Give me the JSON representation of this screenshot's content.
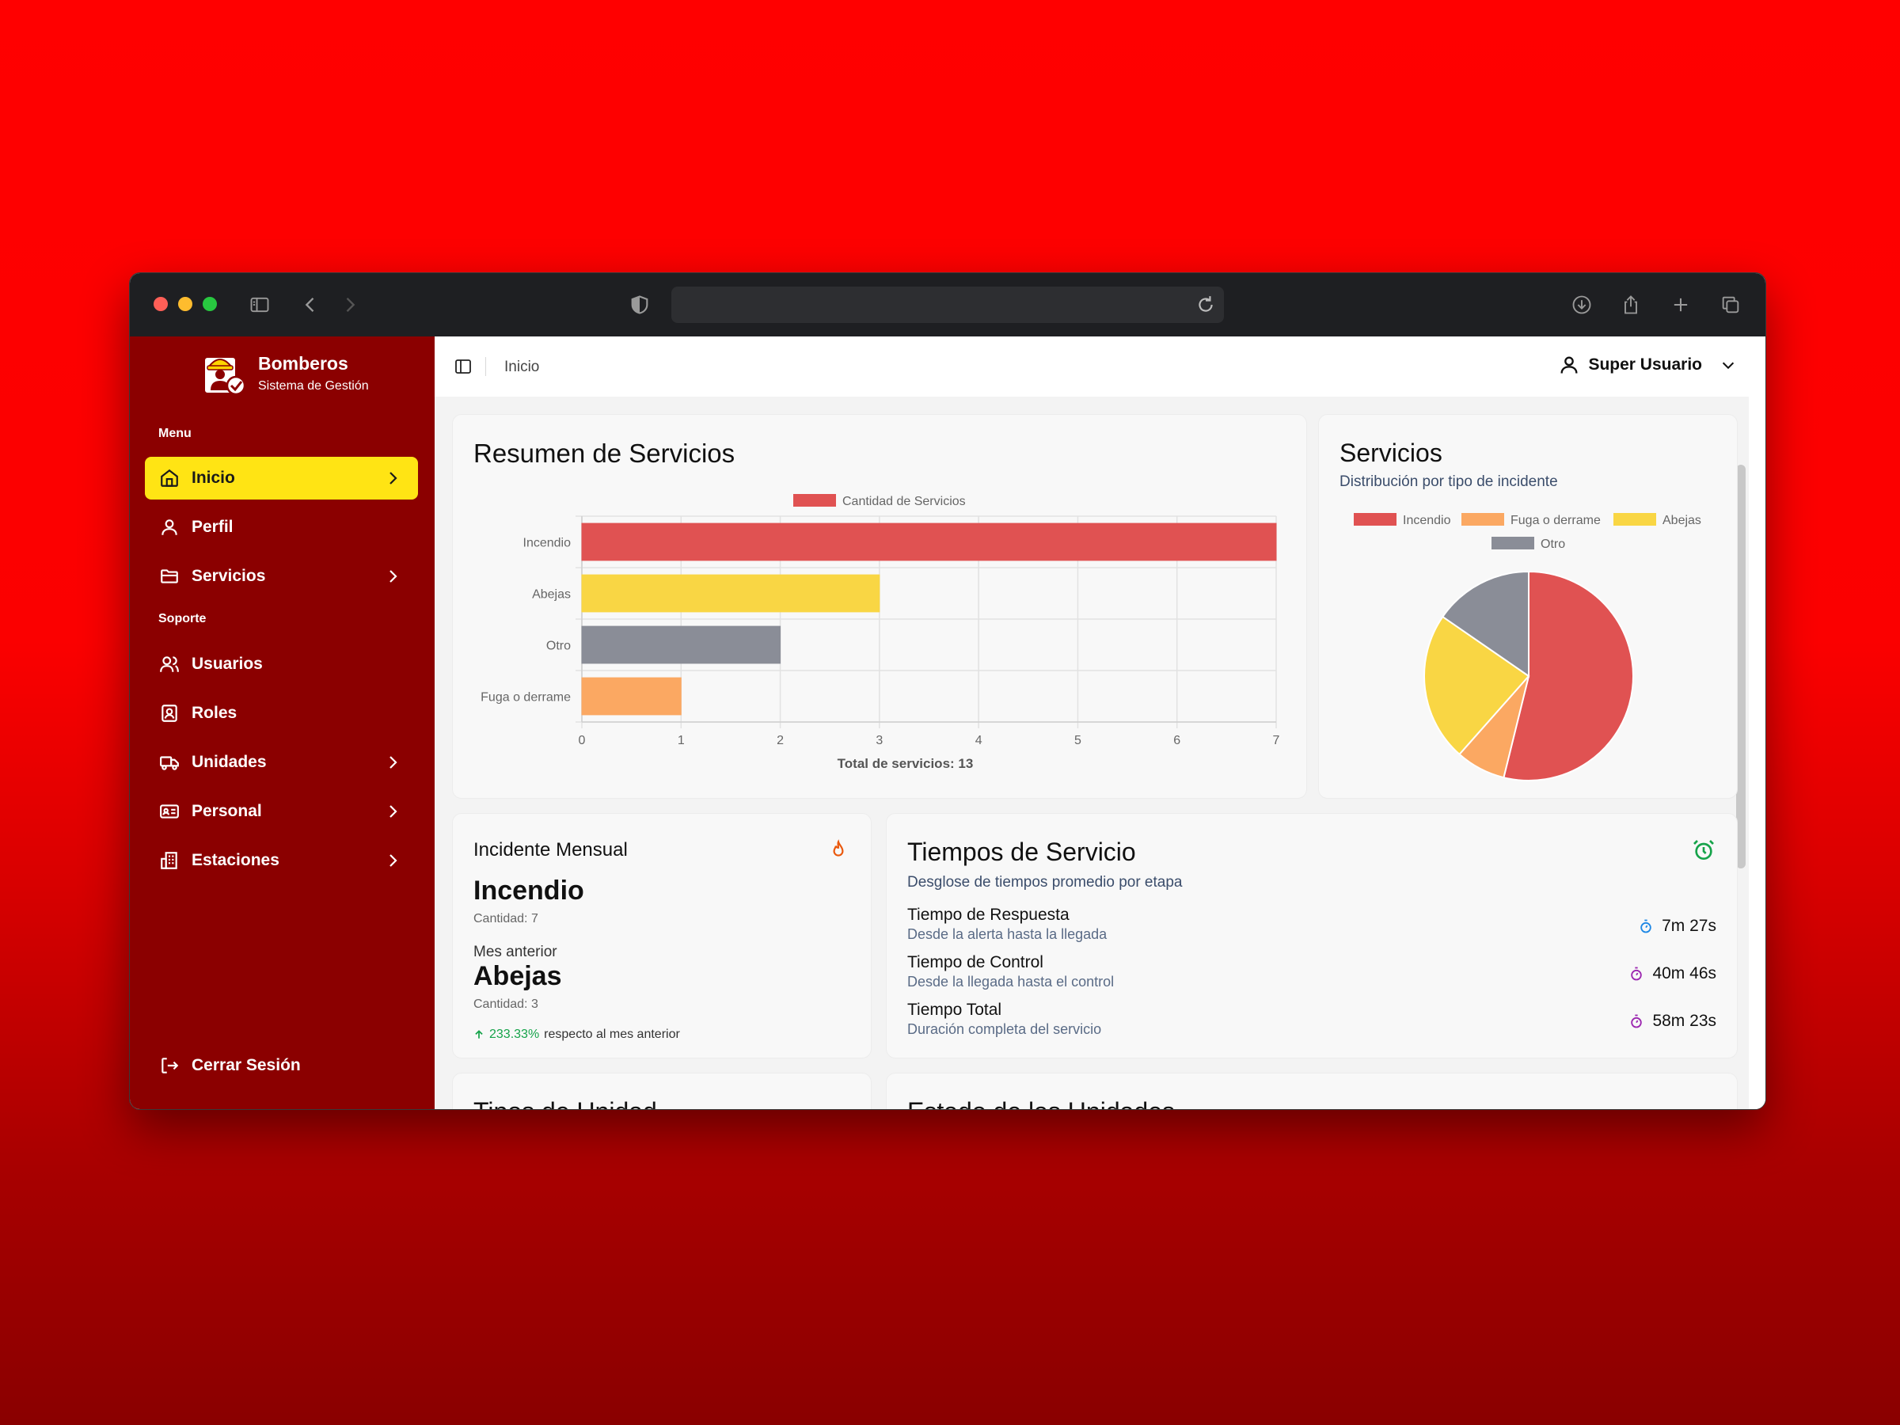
{
  "browser": {
    "url": ""
  },
  "sidebar": {
    "brand_title": "Bomberos",
    "brand_subtitle": "Sistema de Gestión",
    "section_menu": "Menu",
    "section_support": "Soporte",
    "items": [
      {
        "label": "Inicio",
        "icon": "home-icon",
        "active": true
      },
      {
        "label": "Perfil",
        "icon": "user-icon"
      },
      {
        "label": "Servicios",
        "icon": "folder-icon"
      },
      {
        "label": "Usuarios",
        "icon": "users-icon"
      },
      {
        "label": "Roles",
        "icon": "id-badge-icon"
      },
      {
        "label": "Unidades",
        "icon": "truck-icon"
      },
      {
        "label": "Personal",
        "icon": "id-card-icon"
      },
      {
        "label": "Estaciones",
        "icon": "building-icon"
      }
    ],
    "logout_label": "Cerrar Sesión"
  },
  "topbar": {
    "breadcrumb": "Inicio",
    "user_name": "Super Usuario"
  },
  "summary_card": {
    "title": "Resumen de Servicios",
    "total_label": "Total de servicios: 13"
  },
  "pie_card": {
    "title": "Servicios",
    "subtitle": "Distribución por tipo de incidente"
  },
  "incident_card": {
    "title": "Incidente Mensual",
    "current_name": "Incendio",
    "current_count": "Cantidad: 7",
    "prev_label": "Mes anterior",
    "prev_name": "Abejas",
    "prev_count": "Cantidad: 3",
    "change_value": "233.33%",
    "change_text": "respecto al mes anterior"
  },
  "times_card": {
    "title": "Tiempos de Servicio",
    "subtitle": "Desglose de tiempos promedio por etapa",
    "rows": [
      {
        "label": "Tiempo de Respuesta",
        "desc": "Desde la alerta hasta la llegada",
        "value": "7m 27s",
        "color": "#1e88e5"
      },
      {
        "label": "Tiempo de Control",
        "desc": "Desde la llegada hasta el control",
        "value": "40m 46s",
        "color": "#9c27b0"
      },
      {
        "label": "Tiempo Total",
        "desc": "Duración completa del servicio",
        "value": "58m 23s",
        "color": "#9c27b0"
      }
    ]
  },
  "bottom_cards": {
    "unit_types_title": "Tipos de Unidad",
    "unit_status_title": "Estado de las Unidades"
  },
  "colors": {
    "sidebar_bg": "#8b0000",
    "active_item": "#ffe414",
    "incendio": "#e05252",
    "abejas": "#f9d644",
    "otro": "#8a8d97",
    "fuga": "#fba862",
    "positive": "#16a34a"
  },
  "chart_data": [
    {
      "type": "bar",
      "orientation": "horizontal",
      "categories": [
        "Incendio",
        "Abejas",
        "Otro",
        "Fuga o derrame"
      ],
      "series": [
        {
          "name": "Cantidad de Servicios",
          "values": [
            7,
            3,
            2,
            1
          ]
        }
      ],
      "colors": [
        "#e05252",
        "#f9d644",
        "#8a8d97",
        "#fba862"
      ],
      "xlim": [
        0,
        7
      ],
      "xticks": [
        "0",
        "1",
        "2",
        "3",
        "4",
        "5",
        "6",
        "7"
      ],
      "grid": true,
      "legend": "top-center",
      "title": "Resumen de Servicios",
      "xlabel": "Total de servicios: 13"
    },
    {
      "type": "pie",
      "labels": [
        "Incendio",
        "Fuga o derrame",
        "Abejas",
        "Otro"
      ],
      "values": [
        7,
        1,
        3,
        2
      ],
      "colors": [
        "#e05252",
        "#fba862",
        "#f9d644",
        "#8a8d97"
      ],
      "legend": "top",
      "title": "Servicios"
    }
  ]
}
